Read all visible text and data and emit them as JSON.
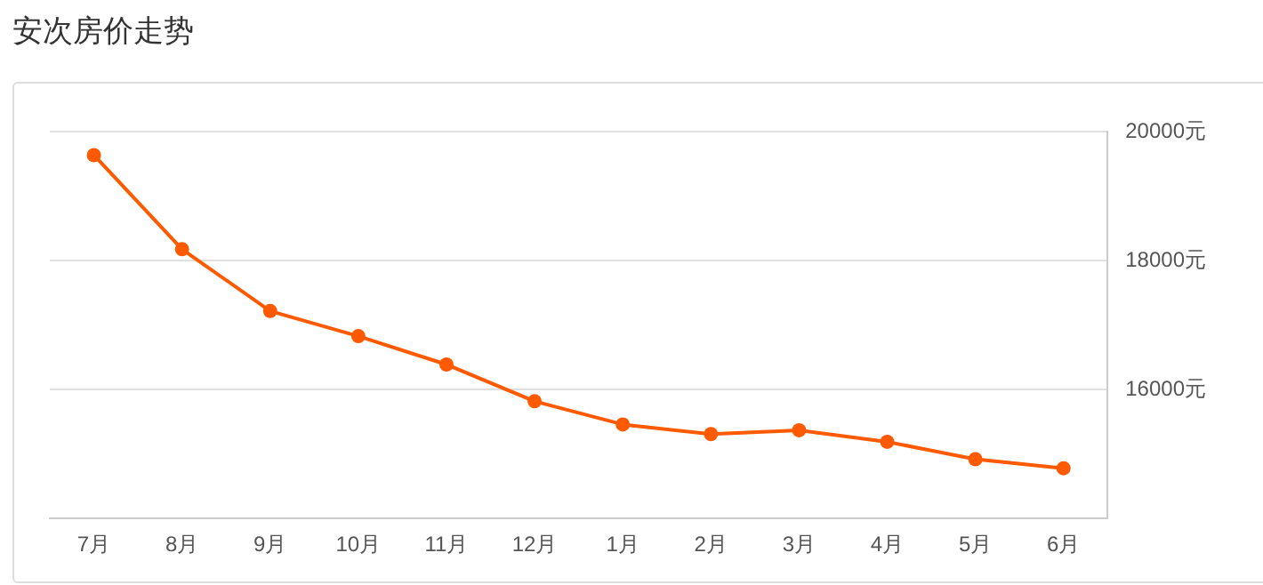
{
  "chart_data": {
    "type": "line",
    "title": "安次房价走势",
    "categories": [
      "7月",
      "8月",
      "9月",
      "10月",
      "11月",
      "12月",
      "1月",
      "2月",
      "3月",
      "4月",
      "5月",
      "6月"
    ],
    "series": [
      {
        "color": "#ff5a00",
        "values": [
          19640,
          18180,
          17220,
          16830,
          16390,
          15820,
          15460,
          15310,
          15370,
          15190,
          14920,
          14780
        ]
      }
    ],
    "ylim": [
      14000,
      20000
    ],
    "yticks": [
      {
        "value": 16000,
        "label": "16000元"
      },
      {
        "value": 18000,
        "label": "18000元"
      },
      {
        "value": 20000,
        "label": "20000元"
      }
    ],
    "grid": "y",
    "legend": false,
    "marker": "circle",
    "line_style": "solid"
  }
}
